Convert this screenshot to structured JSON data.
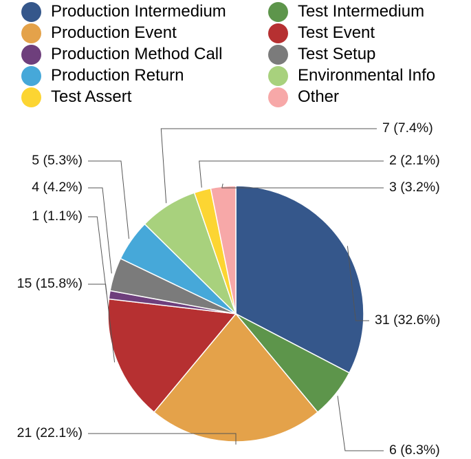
{
  "chart_data": {
    "type": "pie",
    "legend_position": "top",
    "series": [
      {
        "name": "Production Intermedium",
        "value": 31,
        "percent": "32.6%",
        "label": "31 (32.6%)",
        "color": "#35578b"
      },
      {
        "name": "Test Intermedium",
        "value": 6,
        "percent": "6.3%",
        "label": "6 (6.3%)",
        "color": "#5d954b"
      },
      {
        "name": "Production Event",
        "value": 21,
        "percent": "22.1%",
        "label": "21 (22.1%)",
        "color": "#e4a24a"
      },
      {
        "name": "Test Event",
        "value": 15,
        "percent": "15.8%",
        "label": "15 (15.8%)",
        "color": "#b63031"
      },
      {
        "name": "Production Method Call",
        "value": 1,
        "percent": "1.1%",
        "label": "1 (1.1%)",
        "color": "#6e3f7c"
      },
      {
        "name": "Test Setup",
        "value": 4,
        "percent": "4.2%",
        "label": "4 (4.2%)",
        "color": "#7b7b7b"
      },
      {
        "name": "Production Return",
        "value": 5,
        "percent": "5.3%",
        "label": "5 (5.3%)",
        "color": "#46a8d9"
      },
      {
        "name": "Environmental Info",
        "value": 7,
        "percent": "7.4%",
        "label": "7 (7.4%)",
        "color": "#a8d17d"
      },
      {
        "name": "Test Assert",
        "value": 2,
        "percent": "2.1%",
        "label": "2 (2.1%)",
        "color": "#fcd532"
      },
      {
        "name": "Other",
        "value": 3,
        "percent": "3.2%",
        "label": "3 (3.2%)",
        "color": "#f7a8a8"
      }
    ],
    "legend_order": [
      "Production Intermedium",
      "Test Intermedium",
      "Production Event",
      "Test Event",
      "Production Method Call",
      "Test Setup",
      "Production Return",
      "Environmental Info",
      "Test Assert",
      "Other"
    ]
  }
}
